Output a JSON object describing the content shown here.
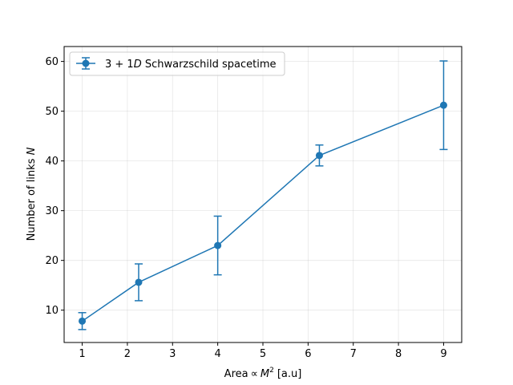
{
  "chart_data": {
    "type": "line",
    "xlabel": "Area ∝ M² [a.u]",
    "ylabel": "Number of links N",
    "xlim": [
      0.6,
      9.4
    ],
    "ylim": [
      3.5,
      63.0
    ],
    "xticks": [
      1,
      2,
      3,
      4,
      5,
      6,
      7,
      8,
      9
    ],
    "yticks": [
      10,
      20,
      30,
      40,
      50,
      60
    ],
    "grid": true,
    "legend_position": "top-left",
    "series": [
      {
        "name": "3 + 1D Schwarzschild spacetime",
        "color": "#1f77b4",
        "x": [
          1,
          2.25,
          4,
          6.25,
          9
        ],
        "y": [
          7.8,
          15.6,
          23.0,
          41.1,
          51.2
        ],
        "yerr": [
          1.7,
          3.7,
          5.9,
          2.1,
          8.9
        ]
      }
    ]
  }
}
